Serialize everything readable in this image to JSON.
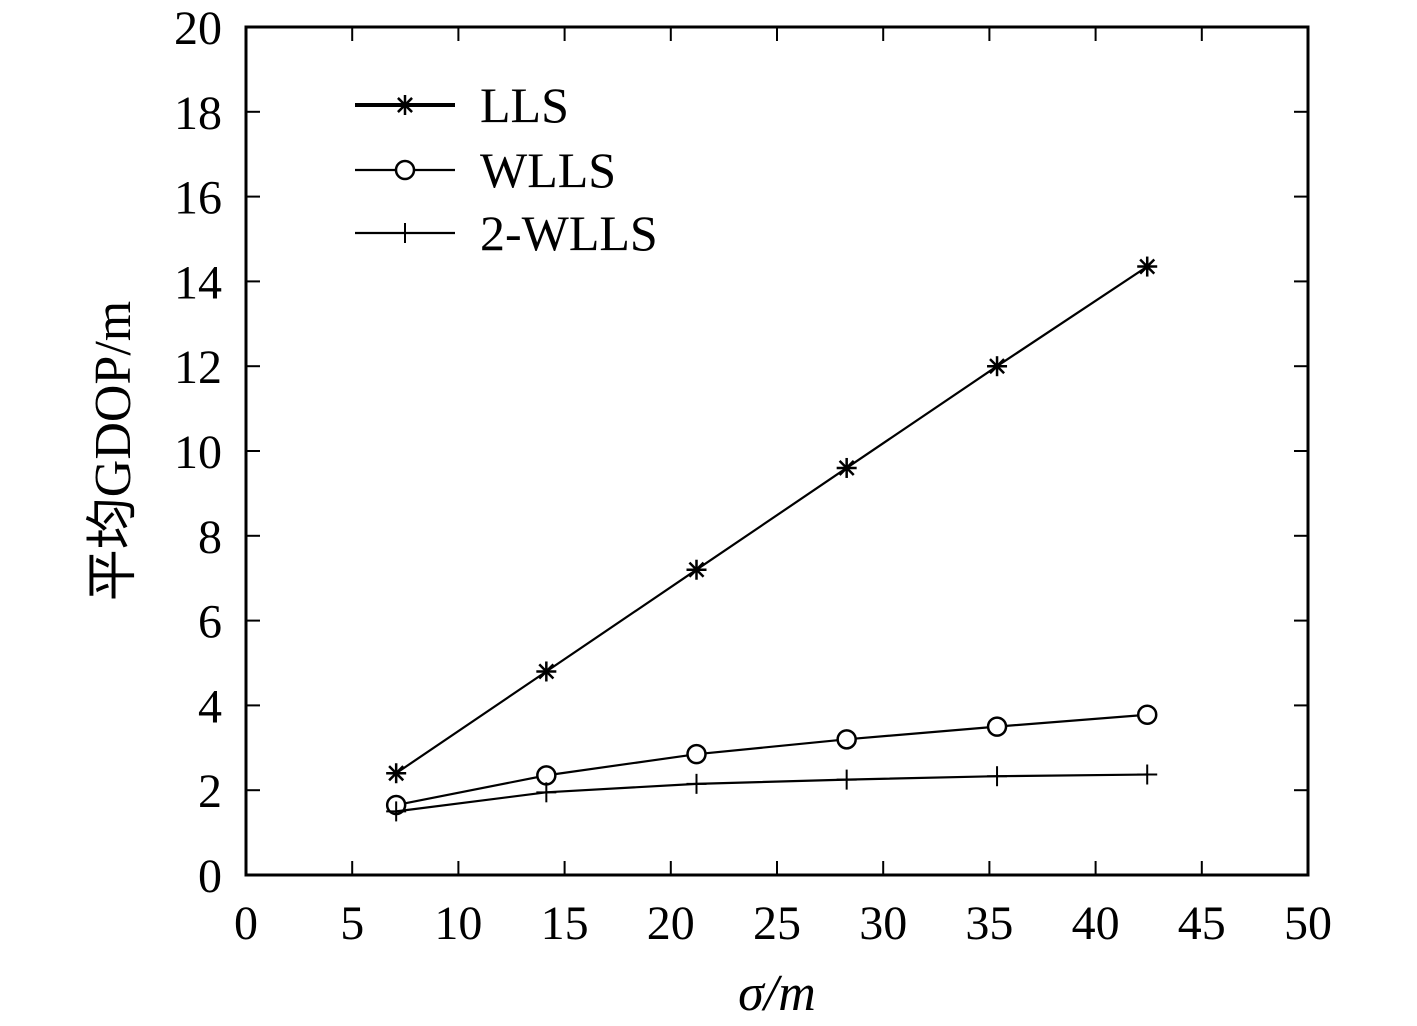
{
  "chart_data": {
    "type": "line",
    "title": "",
    "xlabel": "σ/m",
    "ylabel": "平均GDOP/m",
    "xlim": [
      0,
      50
    ],
    "ylim": [
      0,
      20
    ],
    "xticks": [
      0,
      5,
      10,
      15,
      20,
      25,
      30,
      35,
      40,
      45,
      50
    ],
    "yticks": [
      0,
      2,
      4,
      6,
      8,
      10,
      12,
      14,
      16,
      18,
      20
    ],
    "grid": false,
    "legend_position": "top-left",
    "x": [
      7.07,
      14.14,
      21.21,
      28.28,
      35.36,
      42.43
    ],
    "series": [
      {
        "name": "LLS",
        "marker": "asterisk",
        "values": [
          2.4,
          4.8,
          7.2,
          9.6,
          12.0,
          14.35
        ]
      },
      {
        "name": "WLLS",
        "marker": "circle",
        "values": [
          1.65,
          2.35,
          2.85,
          3.2,
          3.5,
          3.78
        ]
      },
      {
        "name": "2-WLLS",
        "marker": "plus",
        "values": [
          1.5,
          1.95,
          2.15,
          2.25,
          2.33,
          2.37
        ]
      }
    ],
    "colors": {
      "line": "#000000",
      "background": "#ffffff"
    }
  }
}
